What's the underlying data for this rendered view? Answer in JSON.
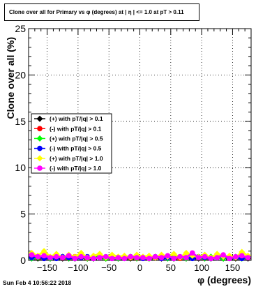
{
  "title": "Clone  over all for Primary vs φ (degrees) at | η | <= 1.0 at pT > 0.11",
  "footer": "Sun Feb  4 10:56:22 2018",
  "chart_data": {
    "type": "scatter",
    "xlabel": "φ (degrees)",
    "ylabel": "Clone  over all (%)",
    "xlim": [
      -180,
      180
    ],
    "ylim": [
      0,
      25
    ],
    "x_ticks": [
      -150,
      -100,
      -50,
      0,
      50,
      100,
      150
    ],
    "y_ticks": [
      0,
      5,
      10,
      15,
      20,
      25
    ],
    "grid": true,
    "legend_position": "left-middle",
    "x": [
      -175,
      -165,
      -155,
      -145,
      -135,
      -125,
      -115,
      -105,
      -95,
      -85,
      -75,
      -65,
      -55,
      -45,
      -35,
      -25,
      -15,
      -5,
      5,
      15,
      25,
      35,
      45,
      55,
      65,
      75,
      85,
      95,
      105,
      115,
      125,
      135,
      145,
      155,
      165,
      175
    ],
    "series": [
      {
        "name": "(+) with pT/|q| > 0.1",
        "color": "#000000",
        "marker": "diamond",
        "values": [
          0.3,
          0.2,
          0.3,
          0.2,
          0.3,
          0.2,
          0.3,
          0.2,
          0.3,
          0.2,
          0.2,
          0.3,
          0.2,
          0.3,
          0.2,
          0.3,
          0.2,
          0.3,
          0.3,
          0.2,
          0.3,
          0.2,
          0.3,
          0.2,
          0.3,
          0.2,
          0.3,
          0.2,
          0.3,
          0.2,
          0.3,
          0.2,
          0.3,
          0.2,
          0.3,
          0.2
        ]
      },
      {
        "name": "(-) with pT/|q| > 0.1",
        "color": "#ff0000",
        "marker": "circle",
        "values": [
          0.4,
          0.3,
          0.2,
          0.3,
          0.4,
          0.3,
          0.2,
          0.4,
          0.3,
          0.2,
          0.3,
          0.4,
          0.3,
          0.2,
          0.3,
          0.4,
          0.3,
          0.2,
          0.3,
          0.4,
          0.3,
          0.2,
          0.4,
          0.3,
          0.2,
          0.3,
          0.4,
          0.3,
          0.2,
          0.3,
          0.4,
          0.3,
          0.2,
          0.3,
          0.4,
          0.3
        ]
      },
      {
        "name": "(+) with pT/|q| > 0.5",
        "color": "#00ff00",
        "marker": "diamond",
        "values": [
          0.2,
          0.3,
          0.4,
          0.2,
          0.3,
          0.4,
          0.2,
          0.3,
          0.4,
          0.2,
          0.3,
          0.4,
          0.2,
          0.3,
          0.2,
          0.3,
          0.4,
          0.2,
          0.3,
          0.2,
          0.4,
          0.3,
          0.2,
          0.4,
          0.3,
          0.2,
          0.4,
          0.3,
          0.2,
          0.4,
          0.3,
          0.2,
          0.3,
          0.4,
          0.2,
          0.3
        ]
      },
      {
        "name": "(-) with pT/|q| > 0.5",
        "color": "#0000ff",
        "marker": "circle",
        "values": [
          0.3,
          0.4,
          0.2,
          0.3,
          0.2,
          0.4,
          0.3,
          0.2,
          0.3,
          0.4,
          0.2,
          0.3,
          0.4,
          0.2,
          0.3,
          0.2,
          0.4,
          0.3,
          0.2,
          0.3,
          0.4,
          0.2,
          0.3,
          0.2,
          0.4,
          0.3,
          0.2,
          0.4,
          0.3,
          0.2,
          0.3,
          0.4,
          0.2,
          0.3,
          0.2,
          0.4
        ]
      },
      {
        "name": "(+) with pT/|q| > 1.0",
        "color": "#ffff00",
        "marker": "diamond",
        "values": [
          0.8,
          0.5,
          1.0,
          0.4,
          0.7,
          0.3,
          0.6,
          0.4,
          0.8,
          0.3,
          0.5,
          0.7,
          0.3,
          0.6,
          0.4,
          0.5,
          0.3,
          0.6,
          0.4,
          0.5,
          0.3,
          0.6,
          0.4,
          0.7,
          0.3,
          0.8,
          0.5,
          0.4,
          0.6,
          0.3,
          0.7,
          0.4,
          0.5,
          0.3,
          0.9,
          0.5
        ]
      },
      {
        "name": "(-) with pT/|q| > 1.0",
        "color": "#ff00ff",
        "marker": "circle",
        "values": [
          0.6,
          0.4,
          0.5,
          0.3,
          0.4,
          0.3,
          0.5,
          0.2,
          0.4,
          0.3,
          0.2,
          0.3,
          0.4,
          0.2,
          0.3,
          0.2,
          0.4,
          0.3,
          0.3,
          0.2,
          0.4,
          0.3,
          0.5,
          0.2,
          0.4,
          0.3,
          0.8,
          0.3,
          0.4,
          0.2,
          0.3,
          0.6,
          0.2,
          0.4,
          0.5,
          0.3
        ]
      }
    ]
  }
}
